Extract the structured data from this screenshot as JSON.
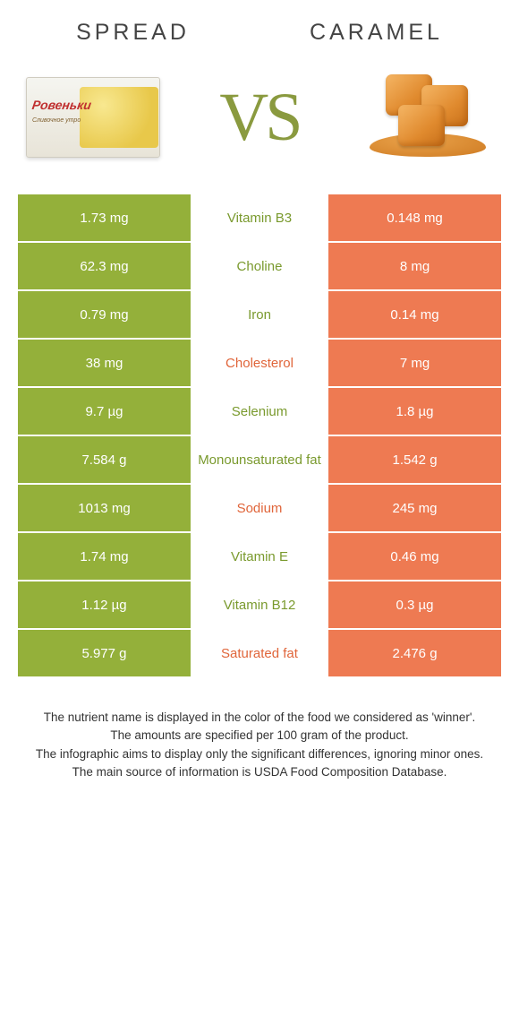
{
  "header": {
    "left": "spread",
    "right": "caramel"
  },
  "vs": "VS",
  "colors": {
    "left": "#94b03a",
    "right": "#ee7a52",
    "mid_green": "#7a9a2e",
    "mid_orange": "#e0653a"
  },
  "rows": [
    {
      "left": "1.73 mg",
      "label": "Vitamin B3",
      "right": "0.148 mg",
      "winner": "left"
    },
    {
      "left": "62.3 mg",
      "label": "Choline",
      "right": "8 mg",
      "winner": "left"
    },
    {
      "left": "0.79 mg",
      "label": "Iron",
      "right": "0.14 mg",
      "winner": "left"
    },
    {
      "left": "38 mg",
      "label": "Cholesterol",
      "right": "7 mg",
      "winner": "right"
    },
    {
      "left": "9.7 µg",
      "label": "Selenium",
      "right": "1.8 µg",
      "winner": "left"
    },
    {
      "left": "7.584 g",
      "label": "Monounsaturated fat",
      "right": "1.542 g",
      "winner": "left"
    },
    {
      "left": "1013 mg",
      "label": "Sodium",
      "right": "245 mg",
      "winner": "right"
    },
    {
      "left": "1.74 mg",
      "label": "Vitamin E",
      "right": "0.46 mg",
      "winner": "left"
    },
    {
      "left": "1.12 µg",
      "label": "Vitamin B12",
      "right": "0.3 µg",
      "winner": "left"
    },
    {
      "left": "5.977 g",
      "label": "Saturated fat",
      "right": "2.476 g",
      "winner": "right"
    }
  ],
  "footer": [
    "The nutrient name is displayed in the color of the food we considered as 'winner'.",
    "The amounts are specified per 100 gram of the product.",
    "The infographic aims to display only the significant differences, ignoring minor ones.",
    "The main source of information is USDA Food Composition Database."
  ],
  "spread_graphic": {
    "brand": "Ровеньки",
    "sub": "Сливочное утро"
  }
}
